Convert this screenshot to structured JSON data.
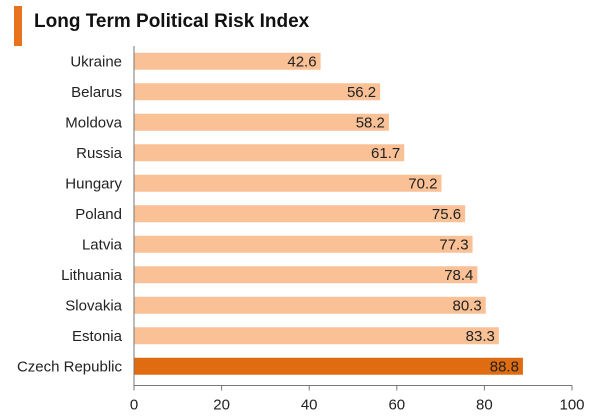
{
  "chart_data": {
    "type": "bar",
    "orientation": "horizontal",
    "title": "Long Term Political Risk Index",
    "categories": [
      "Ukraine",
      "Belarus",
      "Moldova",
      "Russia",
      "Hungary",
      "Poland",
      "Latvia",
      "Lithuania",
      "Slovakia",
      "Estonia",
      "Czech Republic"
    ],
    "values": [
      42.6,
      56.2,
      58.2,
      61.7,
      70.2,
      75.6,
      77.3,
      78.4,
      80.3,
      83.3,
      88.8
    ],
    "value_labels": [
      "42.6",
      "56.2",
      "58.2",
      "61.7",
      "70.2",
      "75.6",
      "77.3",
      "78.4",
      "80.3",
      "83.3",
      "88.8"
    ],
    "xlim": [
      0,
      100
    ],
    "xticks": [
      "0",
      "20",
      "40",
      "60",
      "80",
      "100"
    ],
    "xlabel": "",
    "ylabel": "",
    "grid": false,
    "colors": {
      "bar": "#F9C195",
      "highlight": "#E06C12",
      "title_accent": "#E8731E"
    },
    "highlight_category": "Czech Republic"
  }
}
